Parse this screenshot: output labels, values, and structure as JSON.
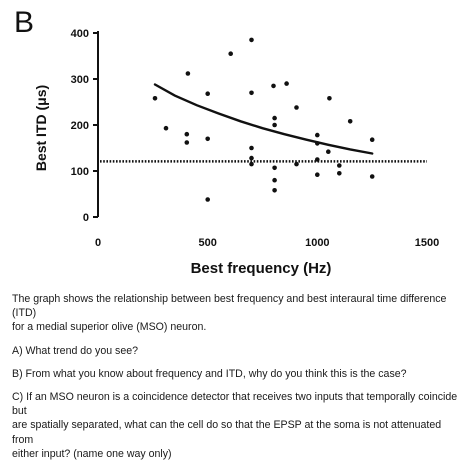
{
  "panel_label": "B",
  "chart_data": {
    "type": "scatter",
    "title": "",
    "xlabel": "Best frequency (Hz)",
    "ylabel": "Best ITD (μs)",
    "xlim": [
      0,
      1500
    ],
    "ylim": [
      0,
      400
    ],
    "xticks": [
      0,
      500,
      1000,
      1500
    ],
    "yticks": [
      0,
      100,
      200,
      300,
      400
    ],
    "grid": false,
    "points": [
      {
        "x": 260,
        "y": 258
      },
      {
        "x": 310,
        "y": 193
      },
      {
        "x": 410,
        "y": 312
      },
      {
        "x": 405,
        "y": 180
      },
      {
        "x": 405,
        "y": 162
      },
      {
        "x": 500,
        "y": 268
      },
      {
        "x": 500,
        "y": 170
      },
      {
        "x": 500,
        "y": 38
      },
      {
        "x": 605,
        "y": 355
      },
      {
        "x": 700,
        "y": 385
      },
      {
        "x": 700,
        "y": 270
      },
      {
        "x": 700,
        "y": 150
      },
      {
        "x": 700,
        "y": 128
      },
      {
        "x": 700,
        "y": 115
      },
      {
        "x": 800,
        "y": 285
      },
      {
        "x": 805,
        "y": 215
      },
      {
        "x": 805,
        "y": 200
      },
      {
        "x": 805,
        "y": 107
      },
      {
        "x": 805,
        "y": 80
      },
      {
        "x": 805,
        "y": 58
      },
      {
        "x": 860,
        "y": 290
      },
      {
        "x": 905,
        "y": 238
      },
      {
        "x": 905,
        "y": 115
      },
      {
        "x": 1000,
        "y": 178
      },
      {
        "x": 1000,
        "y": 160
      },
      {
        "x": 1000,
        "y": 125
      },
      {
        "x": 1000,
        "y": 92
      },
      {
        "x": 1055,
        "y": 258
      },
      {
        "x": 1050,
        "y": 142
      },
      {
        "x": 1100,
        "y": 112
      },
      {
        "x": 1100,
        "y": 95
      },
      {
        "x": 1150,
        "y": 208
      },
      {
        "x": 1250,
        "y": 168
      },
      {
        "x": 1250,
        "y": 88
      }
    ],
    "trend_curve": [
      [
        260,
        288
      ],
      [
        350,
        264
      ],
      [
        450,
        243
      ],
      [
        550,
        225
      ],
      [
        650,
        208
      ],
      [
        750,
        193
      ],
      [
        850,
        180
      ],
      [
        950,
        168
      ],
      [
        1050,
        157
      ],
      [
        1150,
        147
      ],
      [
        1250,
        138
      ]
    ],
    "reference_line_y": 121
  },
  "description_lines": [
    "The graph shows the relationship between best frequency and best interaural time difference (ITD)",
    "for a medial superior olive (MSO) neuron."
  ],
  "question_a": "A) What trend do you see?",
  "question_b": "B) From what you know about frequency and ITD, why do you think this is the case?",
  "question_c_lines": [
    "C) If an MSO neuron is a coincidence detector that receives two inputs that temporally coincide but",
    "are spatially separated, what can the cell do so that the EPSP at the soma is not attenuated from",
    "either input? (name one way only)"
  ]
}
